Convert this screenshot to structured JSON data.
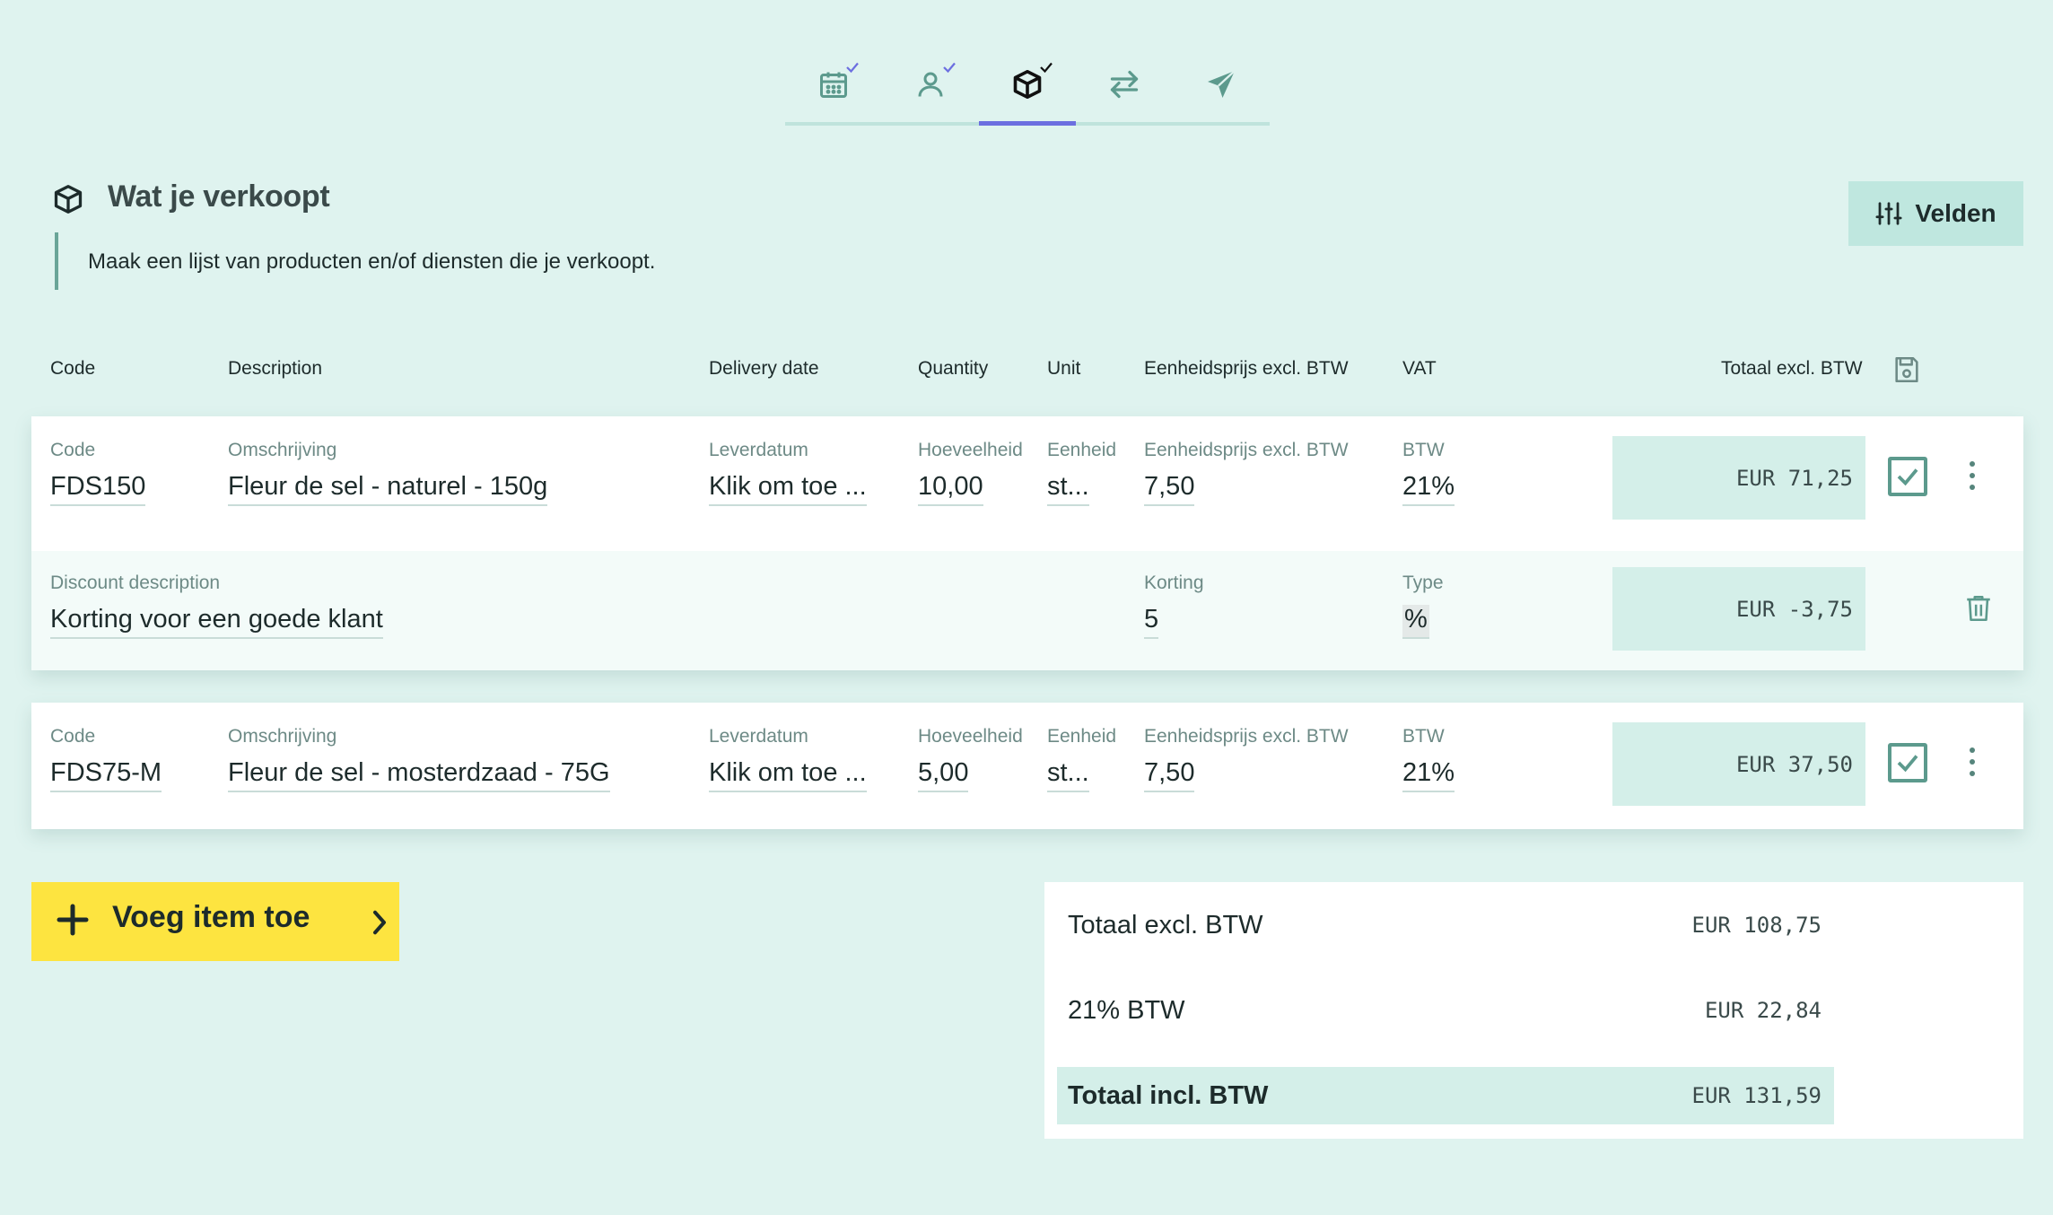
{
  "stepper": {
    "steps": [
      {
        "name": "calendar",
        "completed": true
      },
      {
        "name": "person",
        "completed": true
      },
      {
        "name": "box",
        "completed": true,
        "active": true
      },
      {
        "name": "transfer",
        "completed": false
      },
      {
        "name": "send",
        "completed": false
      }
    ],
    "accent_color": "#6c6fe0"
  },
  "section": {
    "title": "Wat je verkoopt",
    "description": "Maak een lijst van producten en/of diensten die je verkoopt.",
    "fields_button": "Velden"
  },
  "columns": {
    "code": "Code",
    "description": "Description",
    "delivery_date": "Delivery date",
    "quantity": "Quantity",
    "unit": "Unit",
    "unit_price": "Eenheidsprijs excl. BTW",
    "vat": "VAT",
    "total": "Totaal excl. BTW"
  },
  "items": [
    {
      "labels": {
        "code": "Code",
        "description": "Omschrijving",
        "delivery_date": "Leverdatum",
        "quantity": "Hoeveelheid",
        "unit": "Eenheid",
        "unit_price": "Eenheidsprijs excl. BTW",
        "vat": "BTW"
      },
      "code": "FDS150",
      "description": "Fleur de sel - naturel - 150g",
      "delivery_date": "Klik om toe ...",
      "quantity": "10,00",
      "unit": "st...",
      "unit_price": "7,50",
      "vat": "21%",
      "total": "EUR 71,25",
      "checked": true,
      "discount": {
        "labels": {
          "description": "Discount description",
          "amount": "Korting",
          "type": "Type"
        },
        "description": "Korting voor een goede klant",
        "amount": "5",
        "type": "%",
        "total": "EUR -3,75"
      }
    },
    {
      "labels": {
        "code": "Code",
        "description": "Omschrijving",
        "delivery_date": "Leverdatum",
        "quantity": "Hoeveelheid",
        "unit": "Eenheid",
        "unit_price": "Eenheidsprijs excl. BTW",
        "vat": "BTW"
      },
      "code": "FDS75-M",
      "description": "Fleur de sel - mosterdzaad - 75G",
      "delivery_date": "Klik om toe ...",
      "quantity": "5,00",
      "unit": "st...",
      "unit_price": "7,50",
      "vat": "21%",
      "total": "EUR 37,50",
      "checked": true
    }
  ],
  "add_item_button": "Voeg item toe",
  "totals": {
    "excl_label": "Totaal excl. BTW",
    "excl_value": "EUR 108,75",
    "vat_label": "21% BTW",
    "vat_value": "EUR 22,84",
    "incl_label": "Totaal incl. BTW",
    "incl_value": "EUR 131,59"
  },
  "colors": {
    "background": "#dff3ef",
    "add_button": "#fde440",
    "total_cell": "#d4efe9",
    "icon_teal": "#5c9a8d"
  }
}
